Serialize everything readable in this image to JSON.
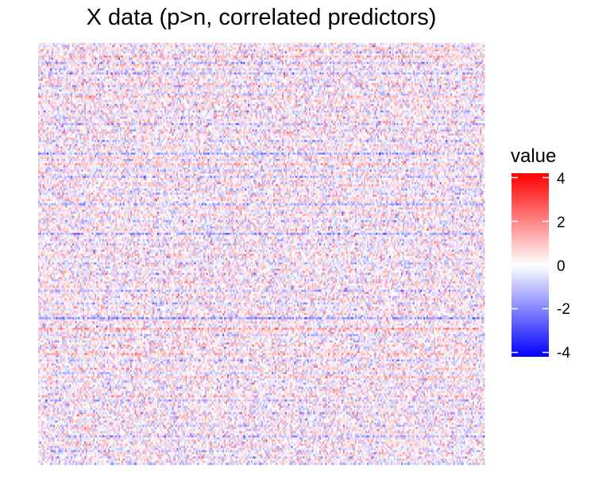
{
  "chart_data": {
    "type": "heatmap",
    "title": "X data (p>n, correlated predictors)",
    "xlabel": "",
    "ylabel": "",
    "n_rows": 200,
    "n_cols": 300,
    "value_range": [
      -4.2,
      4.2
    ],
    "row_means_top_to_bottom": [
      0.2,
      -0.3,
      0.1,
      0.6,
      -0.5,
      0.0,
      0.9,
      -0.2,
      0.3,
      -0.8,
      0.5,
      0.0,
      -0.4,
      0.2,
      -1.0,
      0.1,
      0.4,
      -0.3,
      0.0,
      0.7,
      -0.6,
      -0.2,
      0.3,
      0.0,
      -0.5,
      0.8,
      0.1,
      -0.1,
      0.4,
      -0.3,
      0.6,
      0.0,
      -0.7,
      0.2,
      0.3,
      -0.4,
      0.0,
      0.5,
      -0.9,
      0.1,
      0.2,
      -0.5,
      0.7,
      0.0,
      -0.2,
      0.3,
      -0.6,
      0.1,
      0.0,
      0.4,
      -0.3,
      0.2,
      -1.1,
      0.0,
      0.5,
      -0.4,
      0.1,
      0.8,
      -0.2,
      0.0,
      -0.5,
      0.3,
      0.0,
      -0.8,
      0.4,
      0.1,
      -0.3,
      0.6,
      0.0,
      -0.4,
      0.2,
      -0.6,
      0.3,
      0.0,
      0.5,
      -0.2,
      -0.9,
      0.1,
      0.4,
      0.0,
      -0.3,
      0.6,
      -0.1,
      0.2,
      -0.7,
      0.0,
      0.3,
      -0.4,
      0.5,
      0.0,
      -1.2,
      0.1,
      0.0,
      -0.3,
      0.4,
      -0.5,
      0.2,
      0.0,
      -0.2,
      0.3,
      0.6,
      -0.4,
      0.0,
      0.1,
      -0.6,
      0.3,
      -0.2,
      0.0,
      0.4,
      -0.5,
      0.2,
      0.0,
      -0.3,
      0.7,
      -0.1,
      0.0,
      0.3,
      -0.8,
      0.1,
      0.2,
      -0.4,
      0.5,
      0.0,
      -0.6,
      0.1,
      0.3,
      -0.2,
      0.0,
      0.4,
      -0.3,
      -1.4,
      0.2,
      0.0,
      0.1,
      -0.2,
      1.2,
      0.4,
      0.0,
      -0.5,
      0.3,
      0.1,
      -0.4,
      0.2,
      0.6,
      -0.3,
      0.0,
      0.4,
      0.9,
      -0.2,
      0.1,
      -0.6,
      0.0,
      0.3,
      -0.2,
      0.5,
      0.1,
      -0.4,
      0.0,
      0.7,
      -0.1,
      -0.3,
      0.2,
      0.0,
      -0.5,
      0.4,
      0.1,
      -0.2,
      0.6,
      0.0,
      -0.7,
      0.3,
      0.0,
      -0.4,
      0.2,
      0.1,
      -0.6,
      0.5,
      0.0,
      -0.3,
      0.2,
      0.0,
      -0.5,
      0.4,
      0.1,
      -0.2,
      0.3,
      -0.8,
      0.0,
      0.2,
      -0.3,
      0.5,
      -0.1,
      0.0,
      -0.6,
      0.3,
      0.1,
      -0.4,
      0.2,
      0.0,
      -0.5
    ],
    "legend": {
      "title": "value",
      "ticks": [
        4,
        2,
        0,
        -2,
        -4
      ],
      "tick_labels": [
        "4",
        "2",
        "0",
        "-2",
        "-4"
      ],
      "placement": "right",
      "colors": {
        "low": "#0000FF",
        "mid": "#FFFFFF",
        "high": "#FF0000"
      }
    },
    "grid": false
  }
}
